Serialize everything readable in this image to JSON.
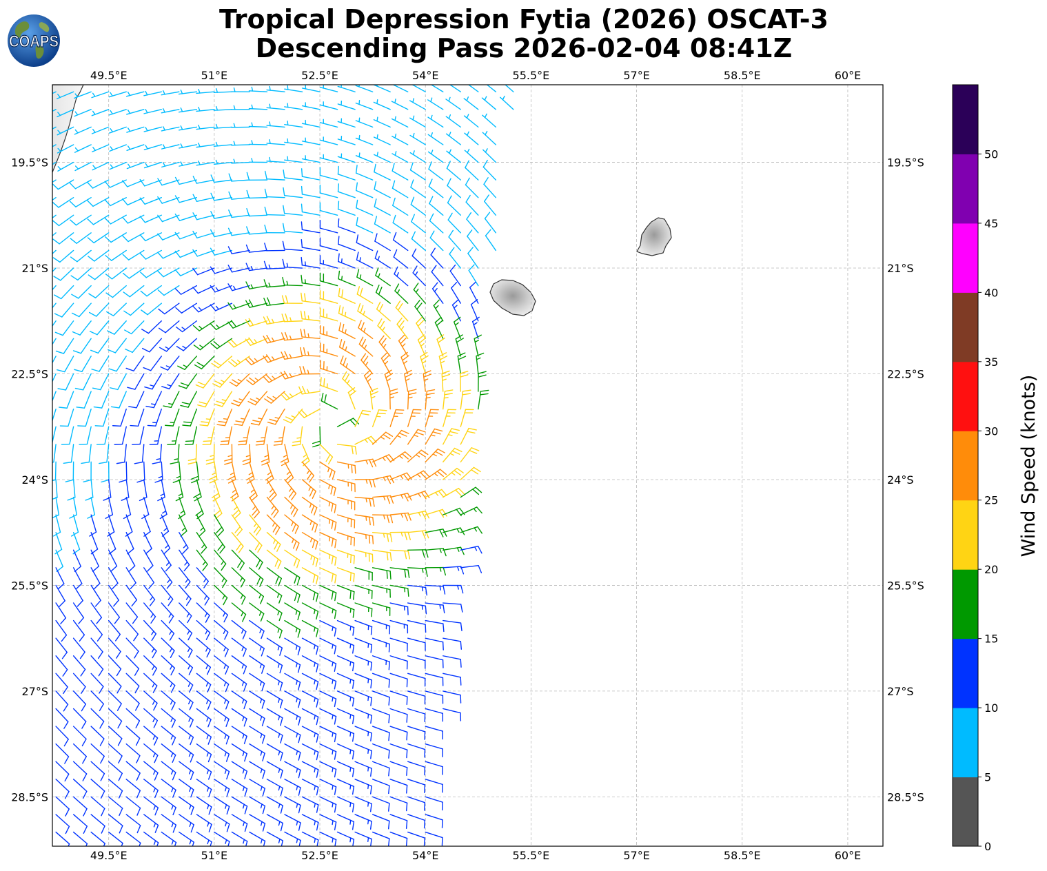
{
  "title": {
    "line1": "Tropical Depression Fytia (2026) OSCAT-3",
    "line2": "Descending Pass 2026-02-04 08:41Z"
  },
  "logo": {
    "text": "COAPS",
    "icon": "earth-globe-logo",
    "ocean_color": "#1a5fb4",
    "land_color": "#6b8e3a"
  },
  "map": {
    "projection": "PlateCarree",
    "lon_range": [
      48.7,
      60.5
    ],
    "lat_range": [
      -29.2,
      -18.4
    ],
    "lon_ticks": [
      49.5,
      51,
      52.5,
      54,
      55.5,
      57,
      58.5,
      60
    ],
    "lon_tick_labels": [
      "49.5°E",
      "51°E",
      "52.5°E",
      "54°E",
      "55.5°E",
      "57°E",
      "58.5°E",
      "60°E"
    ],
    "lat_ticks": [
      -19.5,
      -21,
      -22.5,
      -24,
      -25.5,
      -27,
      -28.5
    ],
    "lat_tick_labels": [
      "19.5°S",
      "21°S",
      "22.5°S",
      "24°S",
      "25.5°S",
      "27°S",
      "28.5°S"
    ],
    "gridlines": true,
    "land_features": [
      "madagascar-coast",
      "reunion-island",
      "mauritius-island"
    ],
    "storm_center": {
      "lon": 52.7,
      "lat": -23.2
    },
    "swath": {
      "west_lon": 48.7,
      "northeast_lon": 55.3,
      "southeast_lon": 54.05,
      "north_lat": -18.4,
      "south_lat": -29.2
    }
  },
  "colorbar": {
    "label": "Wind Speed (knots)",
    "bounds": [
      0,
      5,
      10,
      15,
      20,
      25,
      30,
      35,
      40,
      45,
      50,
      55
    ],
    "tick_values": [
      0,
      5,
      10,
      15,
      20,
      25,
      30,
      35,
      40,
      45,
      50
    ],
    "tick_labels": [
      "0",
      "5",
      "10",
      "15",
      "20",
      "25",
      "30",
      "35",
      "40",
      "45",
      "50"
    ],
    "colors": [
      "#555555",
      "#00bbff",
      "#0033ff",
      "#009900",
      "#ffd414",
      "#ff8c0a",
      "#ff1010",
      "#7f3b25",
      "#ff00ff",
      "#8000b0",
      "#2b0058"
    ]
  },
  "chart_data": {
    "type": "wind_barbs",
    "units": "knots",
    "description_of_field": "cyclonic circulation around storm_center",
    "speed_bins": [
      [
        0,
        5
      ],
      [
        5,
        10
      ],
      [
        10,
        15
      ],
      [
        15,
        20
      ],
      [
        20,
        25
      ],
      [
        25,
        30
      ],
      [
        30,
        35
      ],
      [
        35,
        40
      ],
      [
        40,
        45
      ],
      [
        45,
        50
      ],
      [
        50,
        55
      ]
    ],
    "barb_colors_by_bin": [
      "#555555",
      "#00bbff",
      "#0033ff",
      "#009900",
      "#ffd414",
      "#ff8c0a",
      "#ff1010",
      "#7f3b25",
      "#ff00ff",
      "#8000b0",
      "#2b0058"
    ],
    "grid_spacing_deg": 0.25,
    "max_speed_approx": 27
  }
}
